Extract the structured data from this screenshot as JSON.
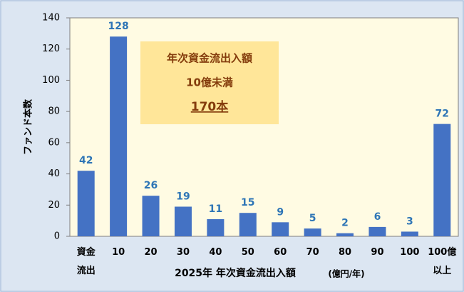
{
  "chart_data": {
    "type": "bar",
    "y_label": "ファンド本数",
    "x_label": "2025年 年次資金流出入額",
    "x_unit": "(億円/年)",
    "categories": [
      "資金\n流出",
      "10",
      "20",
      "30",
      "40",
      "50",
      "60",
      "70",
      "80",
      "90",
      "100",
      "100億\n以上"
    ],
    "values": [
      42,
      128,
      26,
      19,
      11,
      15,
      9,
      5,
      2,
      6,
      3,
      72
    ],
    "color": "#4472c4",
    "label_color": "#2e75b6",
    "ylim": [
      0,
      140
    ],
    "yticks": [
      0,
      20,
      40,
      60,
      80,
      100,
      120,
      140
    ],
    "grid": false,
    "annotation": {
      "lines": [
        "年次資金流出入額",
        "10億未満",
        "170本"
      ]
    }
  }
}
